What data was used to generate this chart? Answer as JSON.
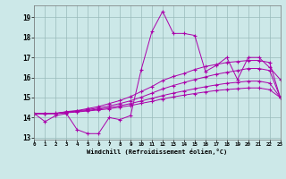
{
  "xlabel": "Windchill (Refroidissement éolien,°C)",
  "bg_color": "#cce8e8",
  "line_color": "#aa00aa",
  "grid_color": "#99bbbb",
  "xlim": [
    0,
    23
  ],
  "ylim": [
    12.9,
    19.6
  ],
  "yticks": [
    13,
    14,
    15,
    16,
    17,
    18,
    19
  ],
  "xticks": [
    0,
    1,
    2,
    3,
    4,
    5,
    6,
    7,
    8,
    9,
    10,
    11,
    12,
    13,
    14,
    15,
    16,
    17,
    18,
    19,
    20,
    21,
    22,
    23
  ],
  "series": [
    [
      14.2,
      13.8,
      14.1,
      14.2,
      13.4,
      13.2,
      13.2,
      14.0,
      13.9,
      14.1,
      16.4,
      18.3,
      19.3,
      18.2,
      18.2,
      18.1,
      16.3,
      16.6,
      17.0,
      15.9,
      17.0,
      17.0,
      16.5,
      15.9
    ],
    [
      14.2,
      14.2,
      14.2,
      14.3,
      14.35,
      14.45,
      14.55,
      14.7,
      14.85,
      15.05,
      15.3,
      15.55,
      15.85,
      16.05,
      16.2,
      16.4,
      16.55,
      16.65,
      16.75,
      16.8,
      16.85,
      16.85,
      16.75,
      15.0
    ],
    [
      14.2,
      14.2,
      14.22,
      14.28,
      14.33,
      14.4,
      14.48,
      14.58,
      14.7,
      14.84,
      15.02,
      15.22,
      15.43,
      15.6,
      15.75,
      15.9,
      16.03,
      16.16,
      16.26,
      16.35,
      16.45,
      16.45,
      16.35,
      15.0
    ],
    [
      14.2,
      14.2,
      14.21,
      14.26,
      14.3,
      14.36,
      14.42,
      14.5,
      14.59,
      14.7,
      14.83,
      14.96,
      15.1,
      15.22,
      15.33,
      15.44,
      15.54,
      15.63,
      15.71,
      15.76,
      15.82,
      15.82,
      15.72,
      15.0
    ],
    [
      14.2,
      14.2,
      14.2,
      14.24,
      14.28,
      14.33,
      14.38,
      14.44,
      14.52,
      14.6,
      14.71,
      14.81,
      14.93,
      15.03,
      15.12,
      15.2,
      15.28,
      15.35,
      15.4,
      15.44,
      15.48,
      15.48,
      15.39,
      15.0
    ]
  ]
}
